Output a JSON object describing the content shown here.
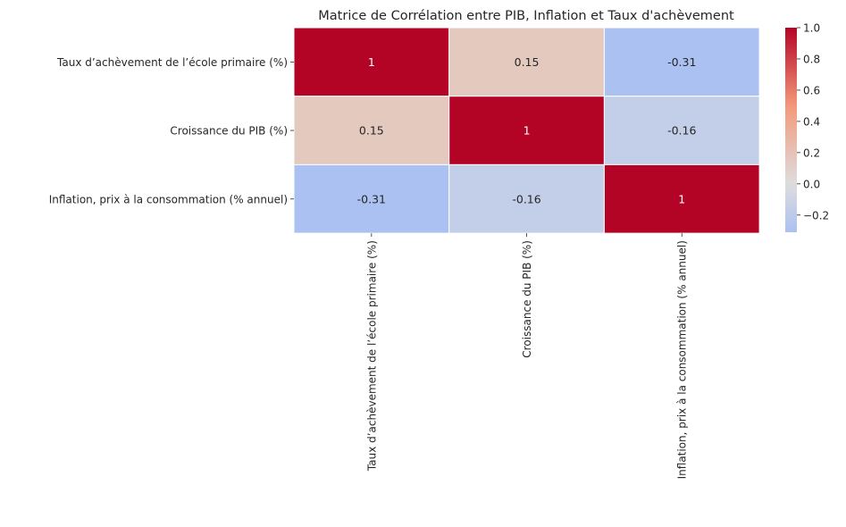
{
  "chart_data": {
    "type": "heatmap",
    "title": "Matrice de Corrélation entre PIB, Inflation et Taux d'achèvement",
    "rows": [
      "Taux d’achèvement de l’école primaire (%)",
      "Croissance du PIB (%)",
      "Inflation, prix à la consommation (% annuel)"
    ],
    "columns": [
      "Taux d’achèvement de l’école primaire (%)",
      "Croissance du PIB (%)",
      "Inflation, prix à la consommation (% annuel)"
    ],
    "values": [
      [
        1,
        0.15,
        -0.31
      ],
      [
        0.15,
        1,
        -0.16
      ],
      [
        -0.31,
        -0.16,
        1
      ]
    ],
    "value_labels": [
      [
        "1",
        "0.15",
        "-0.31"
      ],
      [
        "0.15",
        "1",
        "-0.16"
      ],
      [
        "-0.31",
        "-0.16",
        "1"
      ]
    ],
    "colormap": "coolwarm",
    "center": 0,
    "vmin": -0.31,
    "vmax": 1,
    "colorbar": {
      "ticks": [
        1.0,
        0.8,
        0.6,
        0.4,
        0.2,
        0.0,
        -0.2
      ],
      "tick_labels": [
        "1.0",
        "0.8",
        "0.6",
        "0.4",
        "0.2",
        "0.0",
        "−0.2"
      ]
    },
    "grid": false,
    "legend": "colorbar right"
  }
}
